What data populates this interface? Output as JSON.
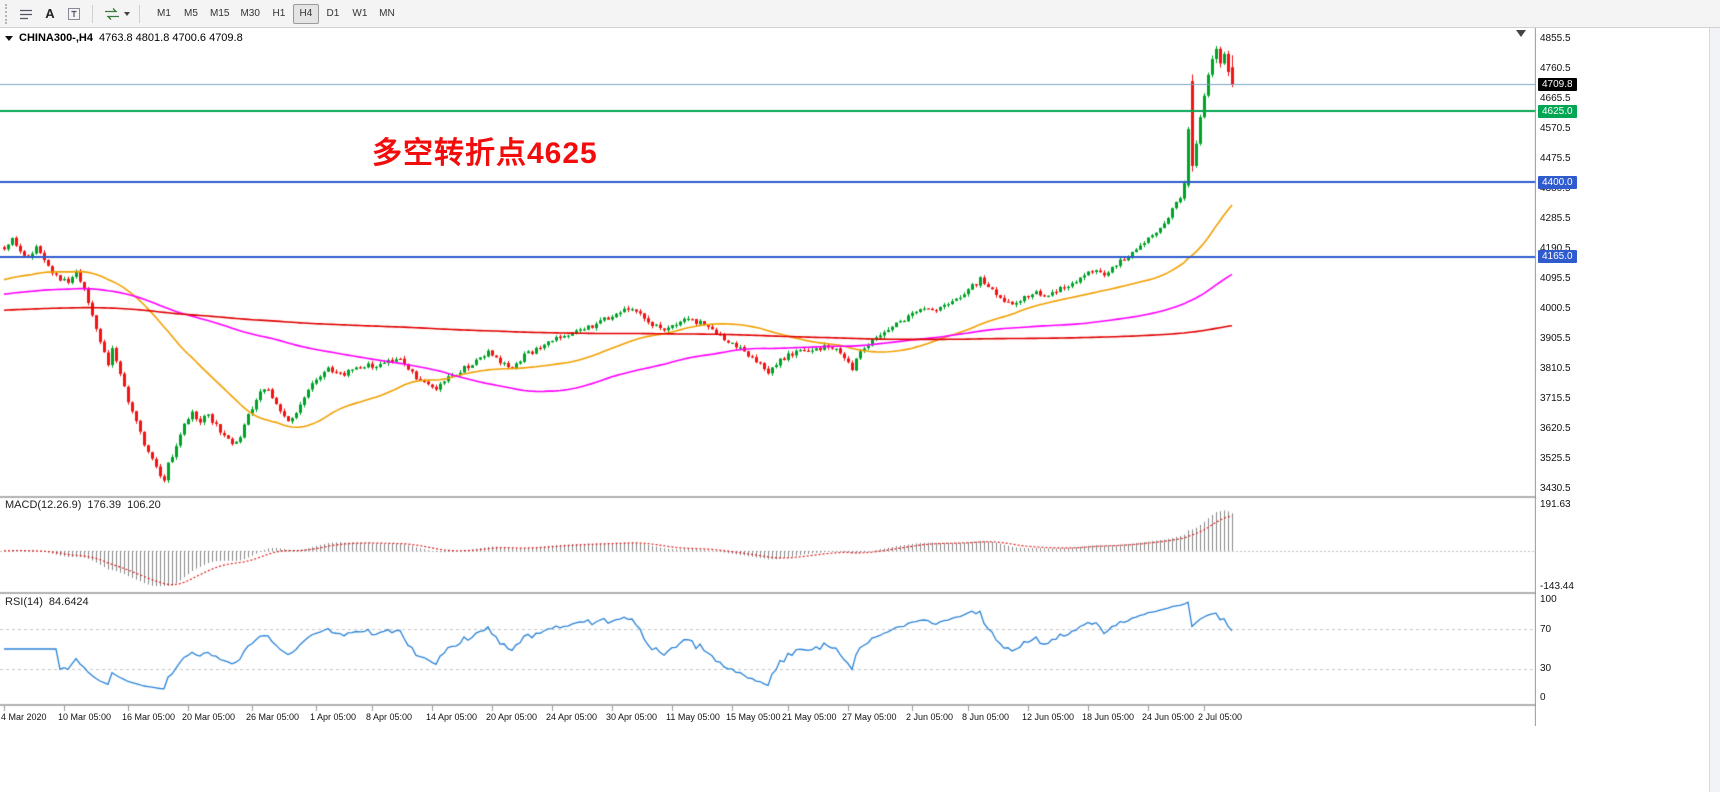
{
  "toolbar": {
    "text_tool_label": "A",
    "timeframes": [
      "M1",
      "M5",
      "M15",
      "M30",
      "H1",
      "H4",
      "D1",
      "W1",
      "MN"
    ],
    "active_timeframe": "H4"
  },
  "chart_header": {
    "symbol_period": "CHINA300-,H4",
    "ohlc": "4763.8 4801.8 4700.6 4709.8"
  },
  "annotation": {
    "text": "多空转折点4625",
    "color": "#F20C0C"
  },
  "indicator_headers": {
    "macd_label": "MACD(12.26.9)",
    "macd_main": "176.39",
    "macd_signal": "106.20",
    "rsi_label": "RSI(14)",
    "rsi_value": "84.6424"
  },
  "scales": {
    "macd_max": "191.63",
    "macd_min": "-143.44",
    "rsi_100": "100",
    "rsi_70": "70",
    "rsi_30": "30",
    "rsi_0": "0"
  },
  "chart_data": {
    "type": "candlestick",
    "symbol": "CHINA300-",
    "timeframe": "H4",
    "ohlc_current": {
      "open": 4763.8,
      "high": 4801.8,
      "low": 4700.6,
      "close": 4709.8
    },
    "price_range": [
      3408,
      4888
    ],
    "y_ticks": [
      4855.5,
      4760.5,
      4665.5,
      4570.5,
      4475.5,
      4380.5,
      4285.5,
      4190.5,
      4095.5,
      4000.5,
      3905.5,
      3810.5,
      3715.5,
      3620.5,
      3525.5,
      3430.5
    ],
    "levels": [
      {
        "price": 4709.8,
        "label": "4709.8",
        "style": "bid-line",
        "line_color": "#7EA4C8",
        "line_width": 1,
        "badge_color": "#000000"
      },
      {
        "price": 4625.0,
        "label": "4625.0",
        "style": "hline",
        "line_color": "#00A651",
        "line_width": 2,
        "badge_color": "#00A651"
      },
      {
        "price": 4400.0,
        "label": "4400.0",
        "style": "hline",
        "line_color": "#2F5BCE",
        "line_width": 2,
        "badge_color": "#2F5BCE"
      },
      {
        "price": 4165.0,
        "label": "4165.0",
        "style": "hline",
        "line_color": "#2F5BCE",
        "line_width": 2,
        "badge_color": "#2F5BCE"
      }
    ],
    "x_labels": [
      [
        "4 Mar 2020",
        0
      ],
      [
        "10 Mar 05:00",
        15
      ],
      [
        "16 Mar 05:00",
        31
      ],
      [
        "20 Mar 05:00",
        46
      ],
      [
        "26 Mar 05:00",
        62
      ],
      [
        "1 Apr 05:00",
        78
      ],
      [
        "8 Apr 05:00",
        92
      ],
      [
        "14 Apr 05:00",
        107
      ],
      [
        "20 Apr 05:00",
        122
      ],
      [
        "24 Apr 05:00",
        137
      ],
      [
        "30 Apr 05:00",
        152
      ],
      [
        "11 May 05:00",
        167
      ],
      [
        "15 May 05:00",
        182
      ],
      [
        "21 May 05:00",
        196
      ],
      [
        "27 May 05:00",
        211
      ],
      [
        "2 Jun 05:00",
        227
      ],
      [
        "8 Jun 05:00",
        241
      ],
      [
        "12 Jun 05:00",
        256
      ],
      [
        "18 Jun 05:00",
        271
      ],
      [
        "24 Jun 05:00",
        286
      ],
      [
        "2 Jul 05:00",
        300
      ]
    ],
    "candles": {
      "count": 308,
      "up_color": "#00A22A",
      "down_color": "#F01414",
      "close_path": [
        [
          0,
          4195
        ],
        [
          2,
          4225
        ],
        [
          4,
          4180
        ],
        [
          6,
          4160
        ],
        [
          8,
          4190
        ],
        [
          10,
          4150
        ],
        [
          13,
          4100
        ],
        [
          16,
          4090
        ],
        [
          18,
          4115
        ],
        [
          20,
          4060
        ],
        [
          22,
          3985
        ],
        [
          24,
          3900
        ],
        [
          26,
          3825
        ],
        [
          27,
          3872
        ],
        [
          29,
          3790
        ],
        [
          31,
          3705
        ],
        [
          33,
          3645
        ],
        [
          35,
          3565
        ],
        [
          37,
          3520
        ],
        [
          39,
          3478
        ],
        [
          40,
          3455
        ],
        [
          41,
          3512
        ],
        [
          43,
          3560
        ],
        [
          45,
          3642
        ],
        [
          47,
          3672
        ],
        [
          49,
          3645
        ],
        [
          51,
          3662
        ],
        [
          53,
          3632
        ],
        [
          55,
          3600
        ],
        [
          57,
          3566
        ],
        [
          59,
          3592
        ],
        [
          61,
          3660
        ],
        [
          63,
          3716
        ],
        [
          65,
          3752
        ],
        [
          67,
          3722
        ],
        [
          69,
          3682
        ],
        [
          71,
          3652
        ],
        [
          73,
          3672
        ],
        [
          75,
          3722
        ],
        [
          77,
          3762
        ],
        [
          79,
          3792
        ],
        [
          81,
          3812
        ],
        [
          84,
          3792
        ],
        [
          87,
          3806
        ],
        [
          90,
          3822
        ],
        [
          93,
          3816
        ],
        [
          96,
          3832
        ],
        [
          99,
          3842
        ],
        [
          101,
          3812
        ],
        [
          103,
          3782
        ],
        [
          105,
          3762
        ],
        [
          108,
          3752
        ],
        [
          110,
          3772
        ],
        [
          112,
          3792
        ],
        [
          115,
          3812
        ],
        [
          118,
          3836
        ],
        [
          121,
          3862
        ],
        [
          124,
          3832
        ],
        [
          127,
          3812
        ],
        [
          130,
          3852
        ],
        [
          133,
          3872
        ],
        [
          136,
          3892
        ],
        [
          139,
          3912
        ],
        [
          142,
          3922
        ],
        [
          145,
          3936
        ],
        [
          148,
          3952
        ],
        [
          151,
          3972
        ],
        [
          154,
          3992
        ],
        [
          157,
          4002
        ],
        [
          159,
          3986
        ],
        [
          162,
          3952
        ],
        [
          165,
          3936
        ],
        [
          168,
          3952
        ],
        [
          171,
          3966
        ],
        [
          174,
          3956
        ],
        [
          177,
          3932
        ],
        [
          180,
          3902
        ],
        [
          183,
          3882
        ],
        [
          186,
          3852
        ],
        [
          189,
          3822
        ],
        [
          191,
          3802
        ],
        [
          193,
          3826
        ],
        [
          196,
          3852
        ],
        [
          199,
          3872
        ],
        [
          202,
          3862
        ],
        [
          205,
          3882
        ],
        [
          208,
          3872
        ],
        [
          210,
          3842
        ],
        [
          212,
          3812
        ],
        [
          214,
          3862
        ],
        [
          217,
          3902
        ],
        [
          220,
          3932
        ],
        [
          223,
          3952
        ],
        [
          226,
          3976
        ],
        [
          229,
          4002
        ],
        [
          232,
          3992
        ],
        [
          235,
          4012
        ],
        [
          238,
          4032
        ],
        [
          241,
          4062
        ],
        [
          244,
          4092
        ],
        [
          246,
          4076
        ],
        [
          249,
          4032
        ],
        [
          252,
          4012
        ],
        [
          255,
          4042
        ],
        [
          258,
          4052
        ],
        [
          261,
          4042
        ],
        [
          264,
          4062
        ],
        [
          267,
          4082
        ],
        [
          270,
          4106
        ],
        [
          273,
          4122
        ],
        [
          275,
          4102
        ],
        [
          278,
          4142
        ],
        [
          281,
          4166
        ],
        [
          284,
          4196
        ],
        [
          287,
          4232
        ],
        [
          290,
          4272
        ],
        [
          292,
          4312
        ],
        [
          294,
          4352
        ],
        [
          295,
          4392
        ]
      ],
      "overrides": [
        [
          296,
          4390,
          4575,
          4383,
          4568
        ],
        [
          297,
          4720,
          4741,
          4434,
          4452
        ],
        [
          298,
          4452,
          4532,
          4446,
          4522
        ],
        [
          299,
          4522,
          4614,
          4516,
          4606
        ],
        [
          300,
          4606,
          4682,
          4601,
          4674
        ],
        [
          301,
          4674,
          4747,
          4668,
          4740
        ],
        [
          302,
          4740,
          4801,
          4732,
          4790
        ],
        [
          303,
          4790,
          4831,
          4777,
          4822
        ],
        [
          304,
          4822,
          4829,
          4763,
          4776
        ],
        [
          305,
          4776,
          4813,
          4771,
          4806
        ],
        [
          306,
          4806,
          4816,
          4736,
          4749
        ],
        [
          307,
          4763.8,
          4801.8,
          4700.6,
          4709.8
        ]
      ]
    },
    "moving_averages": [
      {
        "window": 42,
        "seed": 4090,
        "color": "#F0A000",
        "width": 1.6
      },
      {
        "window": 110,
        "seed": 4045,
        "color": "#FF00FF",
        "width": 1.6
      },
      {
        "window": 360,
        "seed": 3995,
        "color": "#E00000",
        "width": 1.6
      }
    ],
    "macd": {
      "params": [
        12,
        26,
        9
      ],
      "current_main": 176.39,
      "current_signal": 106.2,
      "scale": [
        -143.44,
        191.63
      ],
      "hist_color": "#8A8A8A",
      "signal_color": "#E02020"
    },
    "rsi": {
      "period": 14,
      "current": 84.6424,
      "levels": [
        70,
        30
      ],
      "color": "#2B83D6"
    }
  }
}
